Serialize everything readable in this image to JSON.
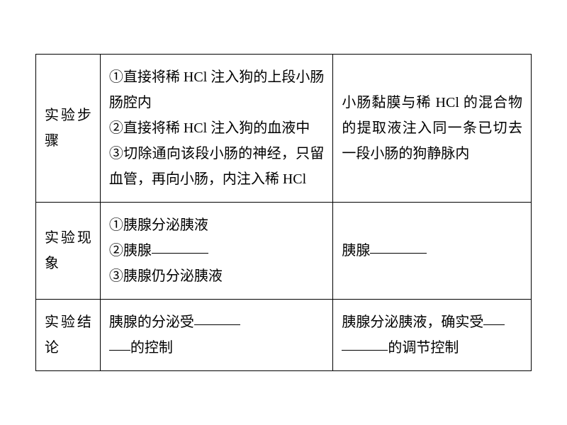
{
  "table": {
    "border_color": "#000000",
    "background_color": "#ffffff",
    "text_color": "#000000",
    "font_family": "SimSun",
    "font_size_pt": 15,
    "line_height": 1.8,
    "columns": [
      {
        "width_pct": 13
      },
      {
        "width_pct": 47
      },
      {
        "width_pct": 40
      }
    ],
    "rows": [
      {
        "label": "实验步骤",
        "col2_lines": [
          "①直接将稀 HCl 注入狗的上段小肠肠腔内",
          "②直接将稀 HCl 注入狗的血液中",
          "③切除通向该段小肠的神经，只留血管，再向小肠，内注入稀 HCl"
        ],
        "col3_text": "小肠黏膜与稀 HCl 的混合物的提取液注入同一条已切去一段小肠的狗静脉内"
      },
      {
        "label": "实验现象",
        "col2_lines": [
          "①胰腺分泌胰液",
          "②胰腺",
          "③胰腺仍分泌胰液"
        ],
        "col2_blank_after_line": 1,
        "col3_prefix": "胰腺"
      },
      {
        "label": "实验结论",
        "col2_prefix": "胰腺的分泌受",
        "col2_suffix": "的控制",
        "col3_prefix": "胰腺分泌胰液，确实受",
        "col3_suffix": "的调节控制"
      }
    ]
  }
}
